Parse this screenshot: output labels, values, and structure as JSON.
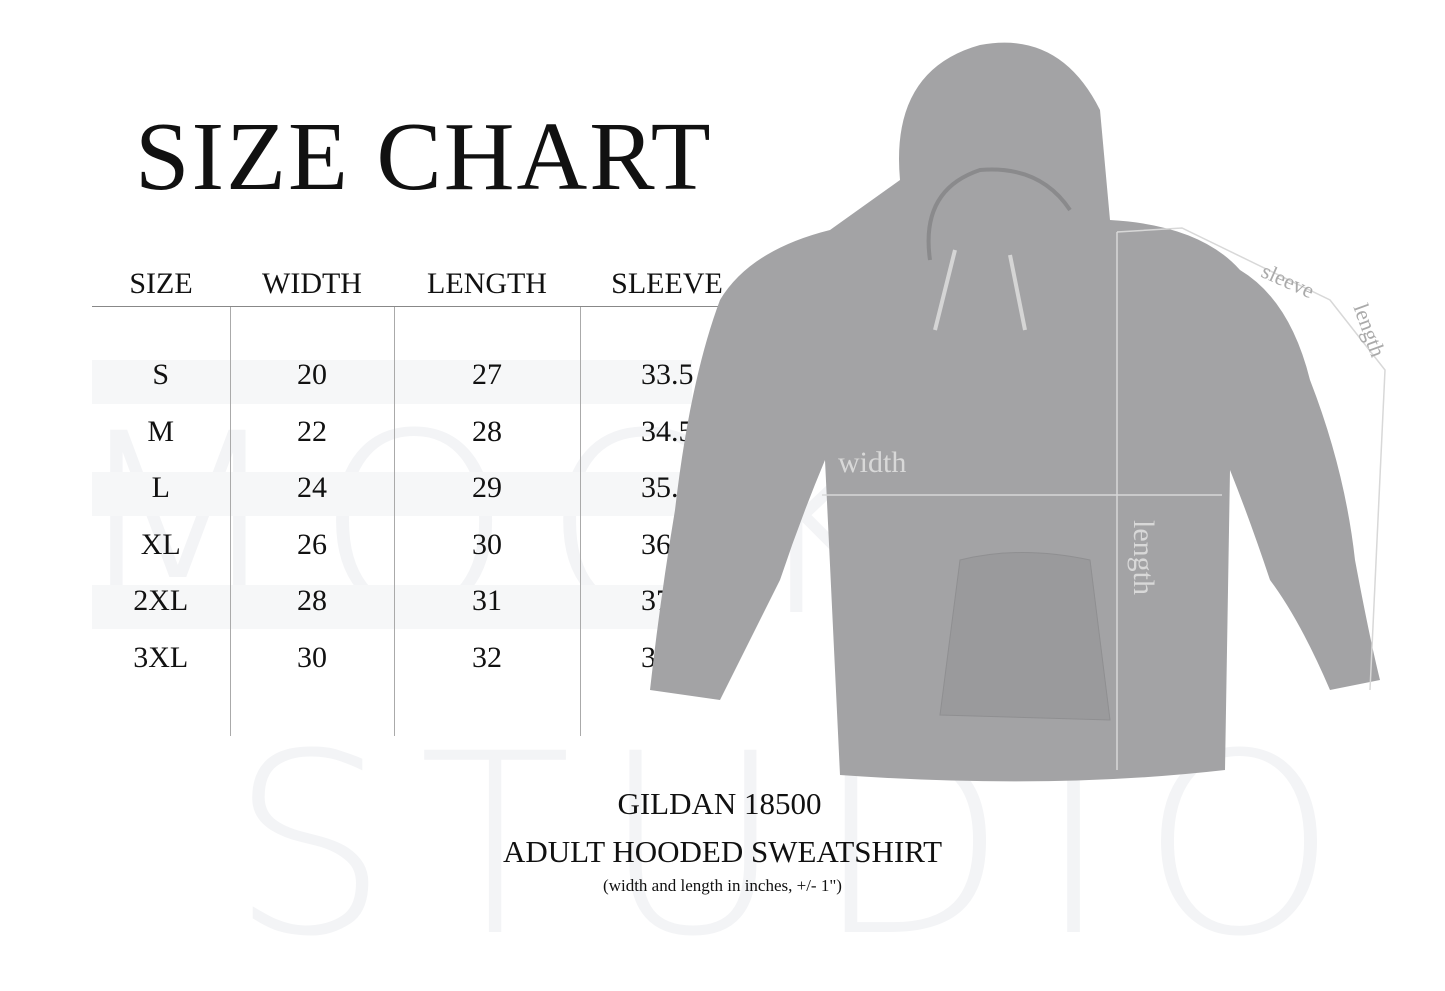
{
  "title": "SIZE CHART",
  "watermark": [
    "MOCK",
    "STUDIO"
  ],
  "table": {
    "headers": [
      "SIZE",
      "WIDTH",
      "LENGTH",
      "SLEEVE"
    ],
    "rows": [
      [
        "S",
        "20",
        "27",
        "33.5"
      ],
      [
        "M",
        "22",
        "28",
        "34.5"
      ],
      [
        "L",
        "24",
        "29",
        "35.5"
      ],
      [
        "XL",
        "26",
        "30",
        "36.5"
      ],
      [
        "2XL",
        "28",
        "31",
        "37.5"
      ],
      [
        "3XL",
        "30",
        "32",
        "38.5"
      ]
    ]
  },
  "diagram_labels": {
    "width": "width",
    "length": "length",
    "sleeve": "sleeve",
    "sleeve_length": "length"
  },
  "product": {
    "model": "GILDAN 18500",
    "name": "ADULT HOODED SWEATSHIRT",
    "note": "(width and length in inches, +/- 1\")"
  },
  "colors": {
    "hoodie": "#a3a3a5",
    "text": "#111111",
    "guide_lines": "#d8d8d8"
  }
}
